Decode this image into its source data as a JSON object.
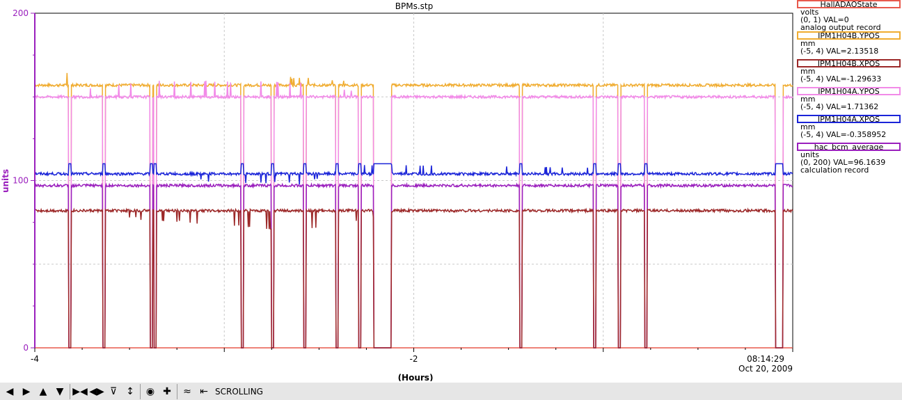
{
  "title": "BPMs.stp",
  "y_axis_label": "units",
  "x_axis_label": "(Hours)",
  "timestamp": {
    "time": "08:14:29",
    "date": "Oct 20, 2009"
  },
  "colors": {
    "y_axis": "#9a1fbd",
    "grid": "#c8c8c8"
  },
  "legend": [
    {
      "name": "HallADAQState",
      "color": "#e8594c",
      "lines": [
        "volts",
        "(0, 1)  VAL=0",
        "analog output record"
      ]
    },
    {
      "name": "IPM1H04B.YPOS",
      "color": "#f0ac30",
      "lines": [
        "mm",
        "(-5, 4) VAL=2.13518"
      ]
    },
    {
      "name": "IPM1H04B.XPOS",
      "color": "#9c2828",
      "lines": [
        "mm",
        "(-5, 4) VAL=-1.29633"
      ]
    },
    {
      "name": "IPM1H04A.YPOS",
      "color": "#f28ae8",
      "lines": [
        "mm",
        "(-5, 4) VAL=1.71362"
      ]
    },
    {
      "name": "IPM1H04A.XPOS",
      "color": "#1a24d8",
      "lines": [
        "mm",
        "(-5, 4) VAL=-0.358952"
      ]
    },
    {
      "name": "hac_bcm_average",
      "color": "#9a1fbd",
      "lines": [
        "units",
        "(0, 200) VAL=96.1639",
        "calculation record"
      ]
    }
  ],
  "toolbar": {
    "buttons": [
      "arrow-left-icon",
      "arrow-right-icon",
      "arrow-up-icon",
      "arrow-down-icon",
      "zoom-x-in-icon",
      "zoom-x-out-icon",
      "zoom-y-in-icon",
      "zoom-y-out-icon",
      "autoscale-icon",
      "crosshair-icon",
      "graph-icon",
      "export-icon"
    ],
    "mode_label": "SCROLLING"
  },
  "chart_data": {
    "type": "line",
    "title": "BPMs.stp",
    "xlabel": "(Hours)",
    "ylabel": "units",
    "xlim": [
      -4,
      0
    ],
    "ylim": [
      0,
      200
    ],
    "x_ticks": [
      "-4",
      "-2"
    ],
    "y_ticks": [
      "0",
      "100",
      "200"
    ],
    "grid": true,
    "legend_position": "right",
    "trips": [
      [
        -3.82,
        -3.81
      ],
      [
        -3.64,
        -3.63
      ],
      [
        -3.39,
        -3.38
      ],
      [
        -3.37,
        -3.36
      ],
      [
        -2.91,
        -2.9
      ],
      [
        -2.75,
        -2.74
      ],
      [
        -2.58,
        -2.57
      ],
      [
        -2.41,
        -2.4
      ],
      [
        -2.29,
        -2.28
      ],
      [
        -2.21,
        -2.12
      ],
      [
        -1.44,
        -1.43
      ],
      [
        -1.05,
        -1.04
      ],
      [
        -0.92,
        -0.91
      ],
      [
        -0.78,
        -0.77
      ],
      [
        -0.09,
        -0.05
      ]
    ],
    "series": [
      {
        "name": "HallADAQState",
        "color": "#e8594c",
        "x": [
          -4,
          0
        ],
        "values": [
          0,
          0
        ]
      },
      {
        "name": "IPM1H04B.YPOS",
        "color": "#f0ac30",
        "baseline": 157,
        "trip_value": 0,
        "x": [
          -4,
          -3.82,
          -3.81,
          -3.33,
          -2.6,
          -2.0,
          -1.0,
          0
        ],
        "values": [
          157,
          165,
          155,
          155,
          162,
          157,
          157,
          157
        ]
      },
      {
        "name": "IPM1H04A.YPOS",
        "color": "#f28ae8",
        "baseline": 150,
        "trip_value": 0,
        "x": [
          -4,
          -3.38,
          -2.6,
          -2.0,
          0
        ],
        "values": [
          150,
          160,
          158,
          150,
          150
        ]
      },
      {
        "name": "IPM1H04A.XPOS",
        "color": "#1a24d8",
        "baseline": 104,
        "trip_value": 110,
        "x": [
          -4,
          -2.6,
          -2.21,
          -2.12,
          0
        ],
        "values": [
          104,
          98,
          110,
          110,
          104
        ]
      },
      {
        "name": "hac_bcm_average",
        "color": "#9a1fbd",
        "baseline": 97,
        "trip_value": 0,
        "x": [
          -4,
          -2.5,
          0
        ],
        "values": [
          97,
          97,
          96
        ]
      },
      {
        "name": "IPM1H04B.XPOS",
        "color": "#9c2828",
        "baseline": 82,
        "trip_value": 0,
        "x": [
          -4,
          -2.6,
          -2.0,
          0
        ],
        "values": [
          82,
          70,
          82,
          82
        ]
      }
    ]
  }
}
